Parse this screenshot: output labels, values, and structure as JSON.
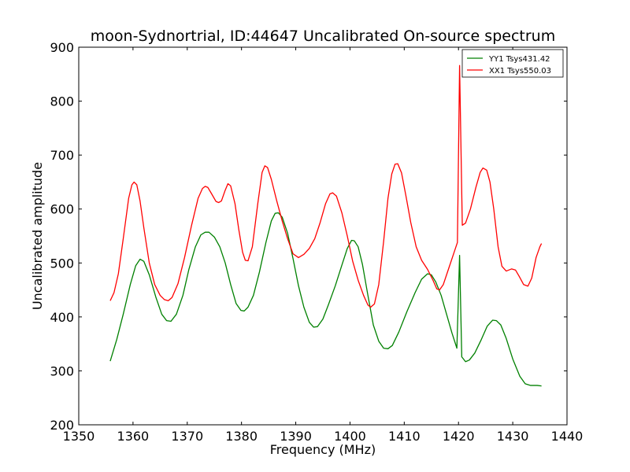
{
  "chart_data": {
    "type": "line",
    "title": "moon-Sydnortrial, ID:44647 Uncalibrated On-source spectrum",
    "xlabel": "Frequency (MHz)",
    "ylabel": "Uncalibrated amplitude",
    "xlim": [
      1350,
      1440
    ],
    "ylim": [
      200,
      900
    ],
    "xticks": [
      1350,
      1360,
      1370,
      1380,
      1390,
      1400,
      1410,
      1420,
      1430,
      1440
    ],
    "yticks": [
      200,
      300,
      400,
      500,
      600,
      700,
      800,
      900
    ],
    "grid": false,
    "legend_position": "top-right",
    "series": [
      {
        "name": "YY1 Tsys431.42",
        "color": "#008000",
        "points": [
          [
            1355.8,
            318
          ],
          [
            1357,
            358
          ],
          [
            1358.2,
            405
          ],
          [
            1359.5,
            460
          ],
          [
            1360.5,
            495
          ],
          [
            1361.3,
            507
          ],
          [
            1362,
            503
          ],
          [
            1363,
            478
          ],
          [
            1364.2,
            437
          ],
          [
            1365.3,
            405
          ],
          [
            1366.2,
            393
          ],
          [
            1367,
            392
          ],
          [
            1368,
            405
          ],
          [
            1369.2,
            440
          ],
          [
            1370.3,
            488
          ],
          [
            1371.5,
            530
          ],
          [
            1372.5,
            552
          ],
          [
            1373.3,
            557
          ],
          [
            1374,
            557
          ],
          [
            1375,
            548
          ],
          [
            1376,
            530
          ],
          [
            1377,
            500
          ],
          [
            1378,
            460
          ],
          [
            1379,
            425
          ],
          [
            1379.9,
            412
          ],
          [
            1380.5,
            411
          ],
          [
            1381.2,
            418
          ],
          [
            1382.2,
            440
          ],
          [
            1383.3,
            483
          ],
          [
            1384.5,
            538
          ],
          [
            1385.5,
            578
          ],
          [
            1386.2,
            592
          ],
          [
            1386.8,
            593
          ],
          [
            1387.5,
            585
          ],
          [
            1388.5,
            555
          ],
          [
            1389.5,
            508
          ],
          [
            1390.5,
            458
          ],
          [
            1391.5,
            418
          ],
          [
            1392.5,
            390
          ],
          [
            1393.3,
            381
          ],
          [
            1394,
            382
          ],
          [
            1395,
            396
          ],
          [
            1396,
            422
          ],
          [
            1397.3,
            458
          ],
          [
            1398.5,
            496
          ],
          [
            1399.5,
            527
          ],
          [
            1400.3,
            542
          ],
          [
            1400.8,
            541
          ],
          [
            1401.5,
            530
          ],
          [
            1402.3,
            497
          ],
          [
            1403.3,
            440
          ],
          [
            1404.3,
            385
          ],
          [
            1405.3,
            355
          ],
          [
            1406.2,
            342
          ],
          [
            1407,
            341
          ],
          [
            1407.8,
            347
          ],
          [
            1409,
            372
          ],
          [
            1410.5,
            410
          ],
          [
            1412,
            445
          ],
          [
            1413.2,
            470
          ],
          [
            1414.3,
            480
          ],
          [
            1415,
            478
          ],
          [
            1415.8,
            465
          ],
          [
            1416.8,
            440
          ],
          [
            1417.8,
            405
          ],
          [
            1418.8,
            370
          ],
          [
            1419.7,
            342
          ],
          [
            1420.2,
            514
          ],
          [
            1420.6,
            326
          ],
          [
            1421.3,
            317
          ],
          [
            1422,
            320
          ],
          [
            1423,
            333
          ],
          [
            1424.2,
            358
          ],
          [
            1425.3,
            383
          ],
          [
            1426.3,
            394
          ],
          [
            1427,
            393
          ],
          [
            1427.8,
            385
          ],
          [
            1428.8,
            360
          ],
          [
            1430,
            322
          ],
          [
            1431.3,
            290
          ],
          [
            1432.3,
            276
          ],
          [
            1433.3,
            273
          ],
          [
            1434.5,
            273
          ],
          [
            1435.3,
            272
          ]
        ]
      },
      {
        "name": "XX1 Tsys550.03",
        "color": "#ff0000",
        "points": [
          [
            1355.8,
            430
          ],
          [
            1356.5,
            445
          ],
          [
            1357.3,
            480
          ],
          [
            1358.2,
            545
          ],
          [
            1359.2,
            620
          ],
          [
            1359.8,
            645
          ],
          [
            1360.2,
            650
          ],
          [
            1360.7,
            645
          ],
          [
            1361.3,
            615
          ],
          [
            1362,
            565
          ],
          [
            1363,
            500
          ],
          [
            1364,
            460
          ],
          [
            1365,
            440
          ],
          [
            1365.8,
            432
          ],
          [
            1366.5,
            430
          ],
          [
            1367.2,
            436
          ],
          [
            1368.3,
            462
          ],
          [
            1369.5,
            510
          ],
          [
            1370.8,
            570
          ],
          [
            1372,
            620
          ],
          [
            1372.8,
            638
          ],
          [
            1373.3,
            642
          ],
          [
            1373.8,
            640
          ],
          [
            1374.5,
            628
          ],
          [
            1375.3,
            614
          ],
          [
            1375.8,
            612
          ],
          [
            1376.3,
            615
          ],
          [
            1377,
            635
          ],
          [
            1377.5,
            647
          ],
          [
            1378,
            643
          ],
          [
            1378.8,
            610
          ],
          [
            1379.5,
            562
          ],
          [
            1380.2,
            520
          ],
          [
            1380.7,
            505
          ],
          [
            1381.2,
            504
          ],
          [
            1382,
            530
          ],
          [
            1383,
            610
          ],
          [
            1383.8,
            668
          ],
          [
            1384.3,
            680
          ],
          [
            1384.8,
            677
          ],
          [
            1385.5,
            655
          ],
          [
            1386.5,
            615
          ],
          [
            1387.5,
            578
          ],
          [
            1388.5,
            545
          ],
          [
            1389.5,
            517
          ],
          [
            1390.5,
            510
          ],
          [
            1391.5,
            516
          ],
          [
            1392.5,
            527
          ],
          [
            1393.5,
            545
          ],
          [
            1394.5,
            575
          ],
          [
            1395.5,
            610
          ],
          [
            1396.3,
            628
          ],
          [
            1396.8,
            630
          ],
          [
            1397.5,
            624
          ],
          [
            1398.5,
            593
          ],
          [
            1399.5,
            550
          ],
          [
            1400.5,
            503
          ],
          [
            1401.5,
            468
          ],
          [
            1402.5,
            440
          ],
          [
            1403.3,
            422
          ],
          [
            1403.8,
            418
          ],
          [
            1404.5,
            424
          ],
          [
            1405.3,
            460
          ],
          [
            1406.2,
            540
          ],
          [
            1407,
            620
          ],
          [
            1407.7,
            665
          ],
          [
            1408.3,
            683
          ],
          [
            1408.8,
            684
          ],
          [
            1409.5,
            667
          ],
          [
            1410.3,
            625
          ],
          [
            1411.2,
            575
          ],
          [
            1412.2,
            530
          ],
          [
            1413.2,
            505
          ],
          [
            1414.3,
            488
          ],
          [
            1415.3,
            468
          ],
          [
            1416,
            452
          ],
          [
            1416.5,
            450
          ],
          [
            1417.2,
            460
          ],
          [
            1418.2,
            490
          ],
          [
            1419.2,
            520
          ],
          [
            1419.8,
            538
          ],
          [
            1420.2,
            866
          ],
          [
            1420.7,
            570
          ],
          [
            1421.3,
            574
          ],
          [
            1422.2,
            600
          ],
          [
            1423.2,
            640
          ],
          [
            1424,
            668
          ],
          [
            1424.5,
            676
          ],
          [
            1425.2,
            672
          ],
          [
            1425.8,
            650
          ],
          [
            1426.5,
            600
          ],
          [
            1427.3,
            530
          ],
          [
            1428,
            494
          ],
          [
            1428.8,
            485
          ],
          [
            1429.8,
            489
          ],
          [
            1430.5,
            487
          ],
          [
            1431.2,
            475
          ],
          [
            1432,
            460
          ],
          [
            1432.8,
            457
          ],
          [
            1433.5,
            472
          ],
          [
            1434.3,
            510
          ],
          [
            1435,
            530
          ],
          [
            1435.3,
            536
          ]
        ]
      }
    ]
  }
}
